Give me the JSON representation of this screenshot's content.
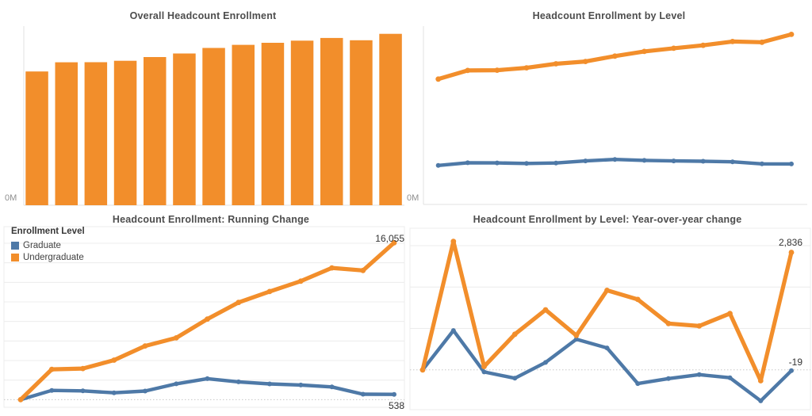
{
  "dashboard": {
    "background": "#ffffff"
  },
  "colors": {
    "undergraduate": "#F28E2B",
    "graduate": "#4E79A7",
    "title_text": "#4d4d4d",
    "annotation_text": "#333333",
    "tick_text": "#8e8e8e",
    "gridline": "#ececec",
    "zero_line": "#c8c8c8",
    "axis_line": "#e0e0e0"
  },
  "chart_data": [
    {
      "type": "bar",
      "title": "Overall Headcount Enrollment",
      "y_tick_label": "0M",
      "ylim": [
        0,
        79000
      ],
      "color": "#F28E2B",
      "values": [
        59000,
        63050,
        63080,
        63740,
        65370,
        66940,
        69390,
        70760,
        71670,
        72615,
        73785,
        72776,
        75593
      ]
    },
    {
      "type": "line",
      "title": "Headcount Enrollment by Level",
      "y_tick_label": "0M",
      "ylim": [
        0,
        64000
      ],
      "series": [
        {
          "name": "Graduate",
          "color": "#4E79A7",
          "values": [
            14000,
            14950,
            14900,
            14700,
            14880,
            15620,
            16150,
            15820,
            15610,
            15495,
            15305,
            14557,
            14538
          ]
        },
        {
          "name": "Undergraduate",
          "color": "#F28E2B",
          "values": [
            45000,
            48100,
            48180,
            49040,
            50490,
            51320,
            53240,
            54940,
            56060,
            57120,
            58480,
            58219,
            61055
          ]
        }
      ]
    },
    {
      "type": "line",
      "title": "Headcount Enrollment: Running Change",
      "legend_title": "Enrollment Level",
      "ylim": [
        -780,
        17700
      ],
      "gridline_step": 2000,
      "zero_line": "dotted",
      "series": [
        {
          "name": "Graduate",
          "color": "#4E79A7",
          "end_label": "538",
          "values": [
            0,
            950,
            900,
            700,
            880,
            1620,
            2150,
            1820,
            1610,
            1495,
            1305,
            557,
            538
          ]
        },
        {
          "name": "Undergraduate",
          "color": "#F28E2B",
          "end_label": "16,055",
          "values": [
            0,
            3100,
            3180,
            4040,
            5490,
            6320,
            8240,
            9940,
            11060,
            12120,
            13480,
            13219,
            16055
          ]
        }
      ]
    },
    {
      "type": "line",
      "title": "Headcount Enrollment by Level: Year-over-year change",
      "ylim": [
        -960,
        3420
      ],
      "gridline_step": 1000,
      "zero_line": "dotted",
      "series": [
        {
          "name": "Graduate",
          "color": "#4E79A7",
          "end_label": "-19",
          "values": [
            0,
            950,
            -50,
            -200,
            180,
            740,
            530,
            -330,
            -210,
            -115,
            -190,
            -748,
            -19
          ]
        },
        {
          "name": "Undergraduate",
          "color": "#F28E2B",
          "end_label": "2,836",
          "values": [
            0,
            3100,
            80,
            860,
            1450,
            830,
            1920,
            1700,
            1120,
            1060,
            1360,
            -261,
            2836
          ]
        }
      ]
    }
  ]
}
